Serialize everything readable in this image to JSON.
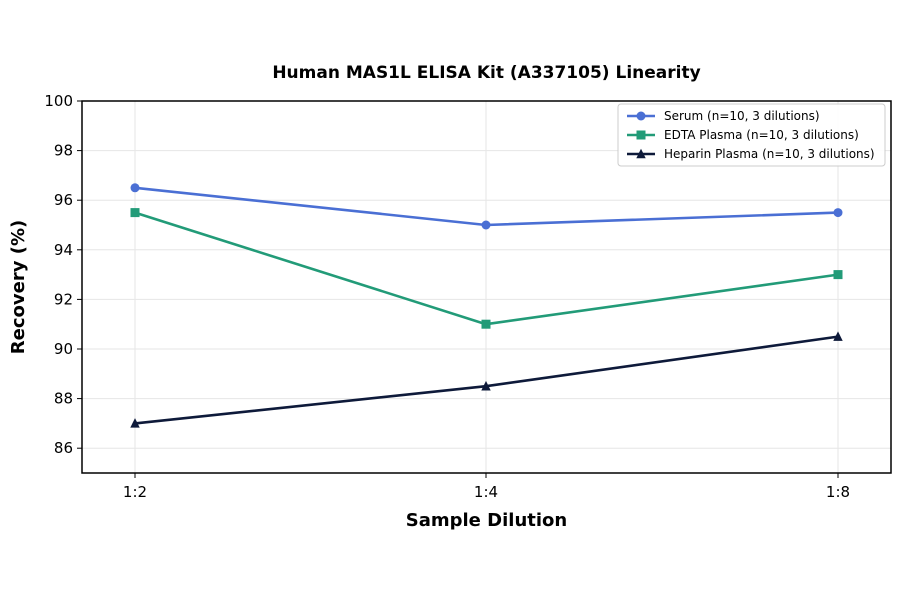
{
  "chart_data": {
    "type": "line",
    "title": "Human MAS1L ELISA Kit (A337105) Linearity",
    "xlabel": "Sample Dilution",
    "ylabel": "Recovery (%)",
    "categories": [
      "1:2",
      "1:4",
      "1:8"
    ],
    "ylim": [
      85,
      100
    ],
    "yticks": [
      86,
      88,
      90,
      92,
      94,
      96,
      98,
      100
    ],
    "grid": true,
    "legend_position": "top-right",
    "series": [
      {
        "name": "Serum (n=10, 3 dilutions)",
        "values": [
          96.5,
          95.0,
          95.5
        ],
        "color": "#4a6fd4",
        "marker": "circle"
      },
      {
        "name": "EDTA Plasma (n=10, 3 dilutions)",
        "values": [
          95.5,
          91.0,
          93.0
        ],
        "color": "#229b78",
        "marker": "square"
      },
      {
        "name": "Heparin Plasma (n=10, 3 dilutions)",
        "values": [
          87.0,
          88.5,
          90.5
        ],
        "color": "#0e1a3a",
        "marker": "triangle"
      }
    ]
  }
}
